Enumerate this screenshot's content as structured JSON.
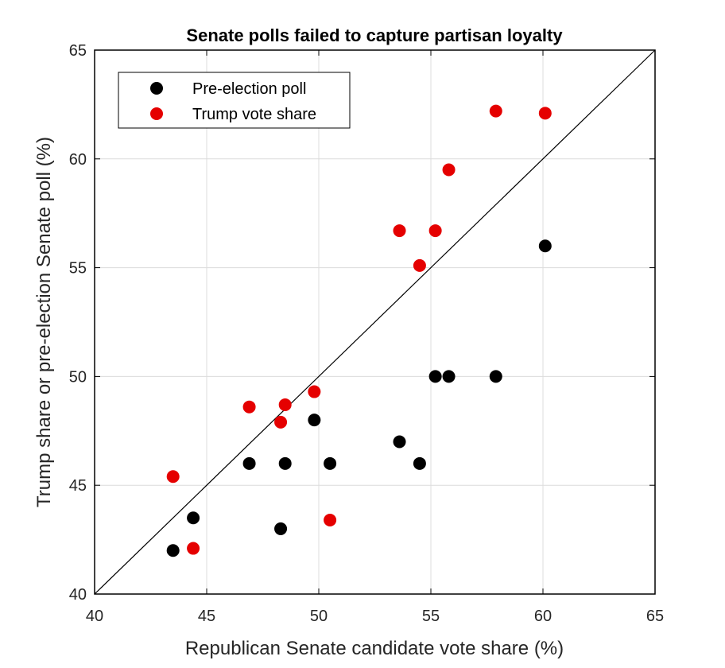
{
  "chart_data": {
    "type": "scatter",
    "title": "Senate polls failed to capture partisan loyalty",
    "xlabel": "Republican Senate candidate vote share (%)",
    "ylabel": "Trump share or pre-election Senate poll (%)",
    "xlim": [
      40,
      65
    ],
    "ylim": [
      40,
      65
    ],
    "xticks": [
      40,
      45,
      50,
      55,
      60,
      65
    ],
    "yticks": [
      40,
      45,
      50,
      55,
      60,
      65
    ],
    "grid": true,
    "legend_position": "top-left",
    "reference_line": {
      "from": [
        40,
        40
      ],
      "to": [
        65,
        65
      ],
      "color": "#000000"
    },
    "series": [
      {
        "name": "Pre-election poll",
        "color": "#000000",
        "points": [
          [
            43.5,
            42.0
          ],
          [
            44.4,
            43.5
          ],
          [
            46.9,
            46.0
          ],
          [
            48.3,
            43.0
          ],
          [
            48.5,
            46.0
          ],
          [
            49.8,
            48.0
          ],
          [
            50.5,
            46.0
          ],
          [
            53.6,
            47.0
          ],
          [
            54.5,
            46.0
          ],
          [
            55.2,
            50.0
          ],
          [
            55.8,
            50.0
          ],
          [
            57.9,
            50.0
          ],
          [
            60.1,
            56.0
          ]
        ]
      },
      {
        "name": "Trump vote share",
        "color": "#e50000",
        "points": [
          [
            43.5,
            45.4
          ],
          [
            44.4,
            42.1
          ],
          [
            46.9,
            48.6
          ],
          [
            48.3,
            47.9
          ],
          [
            48.5,
            48.7
          ],
          [
            49.8,
            49.3
          ],
          [
            50.5,
            43.4
          ],
          [
            53.6,
            56.7
          ],
          [
            54.5,
            55.1
          ],
          [
            55.2,
            56.7
          ],
          [
            55.8,
            59.5
          ],
          [
            57.9,
            62.2
          ],
          [
            60.1,
            62.1
          ]
        ]
      }
    ]
  }
}
